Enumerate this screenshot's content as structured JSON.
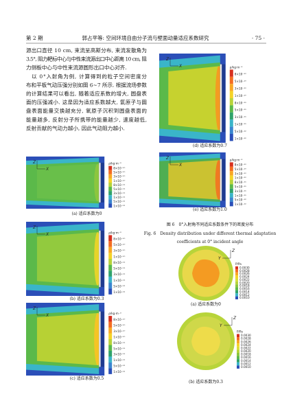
{
  "header": {
    "issue": "第 2 期",
    "title": "郭占平等: 空间环境自由分子流与壁面动量适应系数研究",
    "page": "· 75 ·"
  },
  "body": {
    "lines": [
      "源出口直径 10 cm, 束流呈高斯分布, 束流发散角为",
      "3.5°, 阻力靶标中心与中性束流源出口中心距离 10 cm, 阻",
      "力侧板中心与中性束流源圆形出口中心对齐.",
      "以 0°入射角为例, 计算得到的粒子空间密度分",
      "布和平板气动压强分别如图 6~7 所示. 根据流场参数",
      "的计算结果可以看出, 随着适应系数的增大, 圆盘表",
      "面的压强减小. 这是因为适应系数越大, 氧原子与圆",
      "盘表面能量交换越充分, 氧原子沉积到圆盘表面的",
      "能量越多, 反射分子所携带的能量越少, 速度越低,",
      "反射贡献的气动力越小, 因此气动阻力越小."
    ]
  },
  "figure6": {
    "unit": "ρ/kg·m⁻³",
    "axis_z": "Z",
    "axis_x": "X",
    "legend": [
      "8×10⁻¹⁰",
      "5×10⁻¹⁰",
      "3×10⁻¹⁰",
      "1×10⁻¹⁰",
      "8×10⁻¹¹",
      "5×10⁻¹¹",
      "3×10⁻¹¹",
      "1×10⁻¹¹",
      "5×10⁻¹²",
      "1×10⁻¹²"
    ],
    "panels": [
      {
        "caption": "(a) 适应系数为0"
      },
      {
        "caption": "(b) 适应系数为0.3"
      },
      {
        "caption": "(c) 适应系数为0.5"
      },
      {
        "caption": "(d) 适应系数为0.7"
      },
      {
        "caption": "(e) 适应系数为1.0"
      }
    ],
    "caption_cn": "图 6　0°入射角不同适应系数条件下的密度分布",
    "caption_en": [
      "Fig. 6　Density distribution under different thermal adaptation",
      "coefficients at 0° incident angle"
    ]
  },
  "figure7": {
    "unit": "P/Pa",
    "axis_y": "Y",
    "axis_z": "Z",
    "legend": [
      "0.0030",
      "0.0028",
      "0.0026",
      "0.0024",
      "0.0022",
      "0.0020",
      "0.0018",
      "0.0016",
      "0.0014",
      "0.0012",
      "0.0010"
    ],
    "panels": [
      {
        "caption": "(a) 适应系数为0"
      },
      {
        "caption": "(b) 适应系数为0.3"
      }
    ]
  }
}
